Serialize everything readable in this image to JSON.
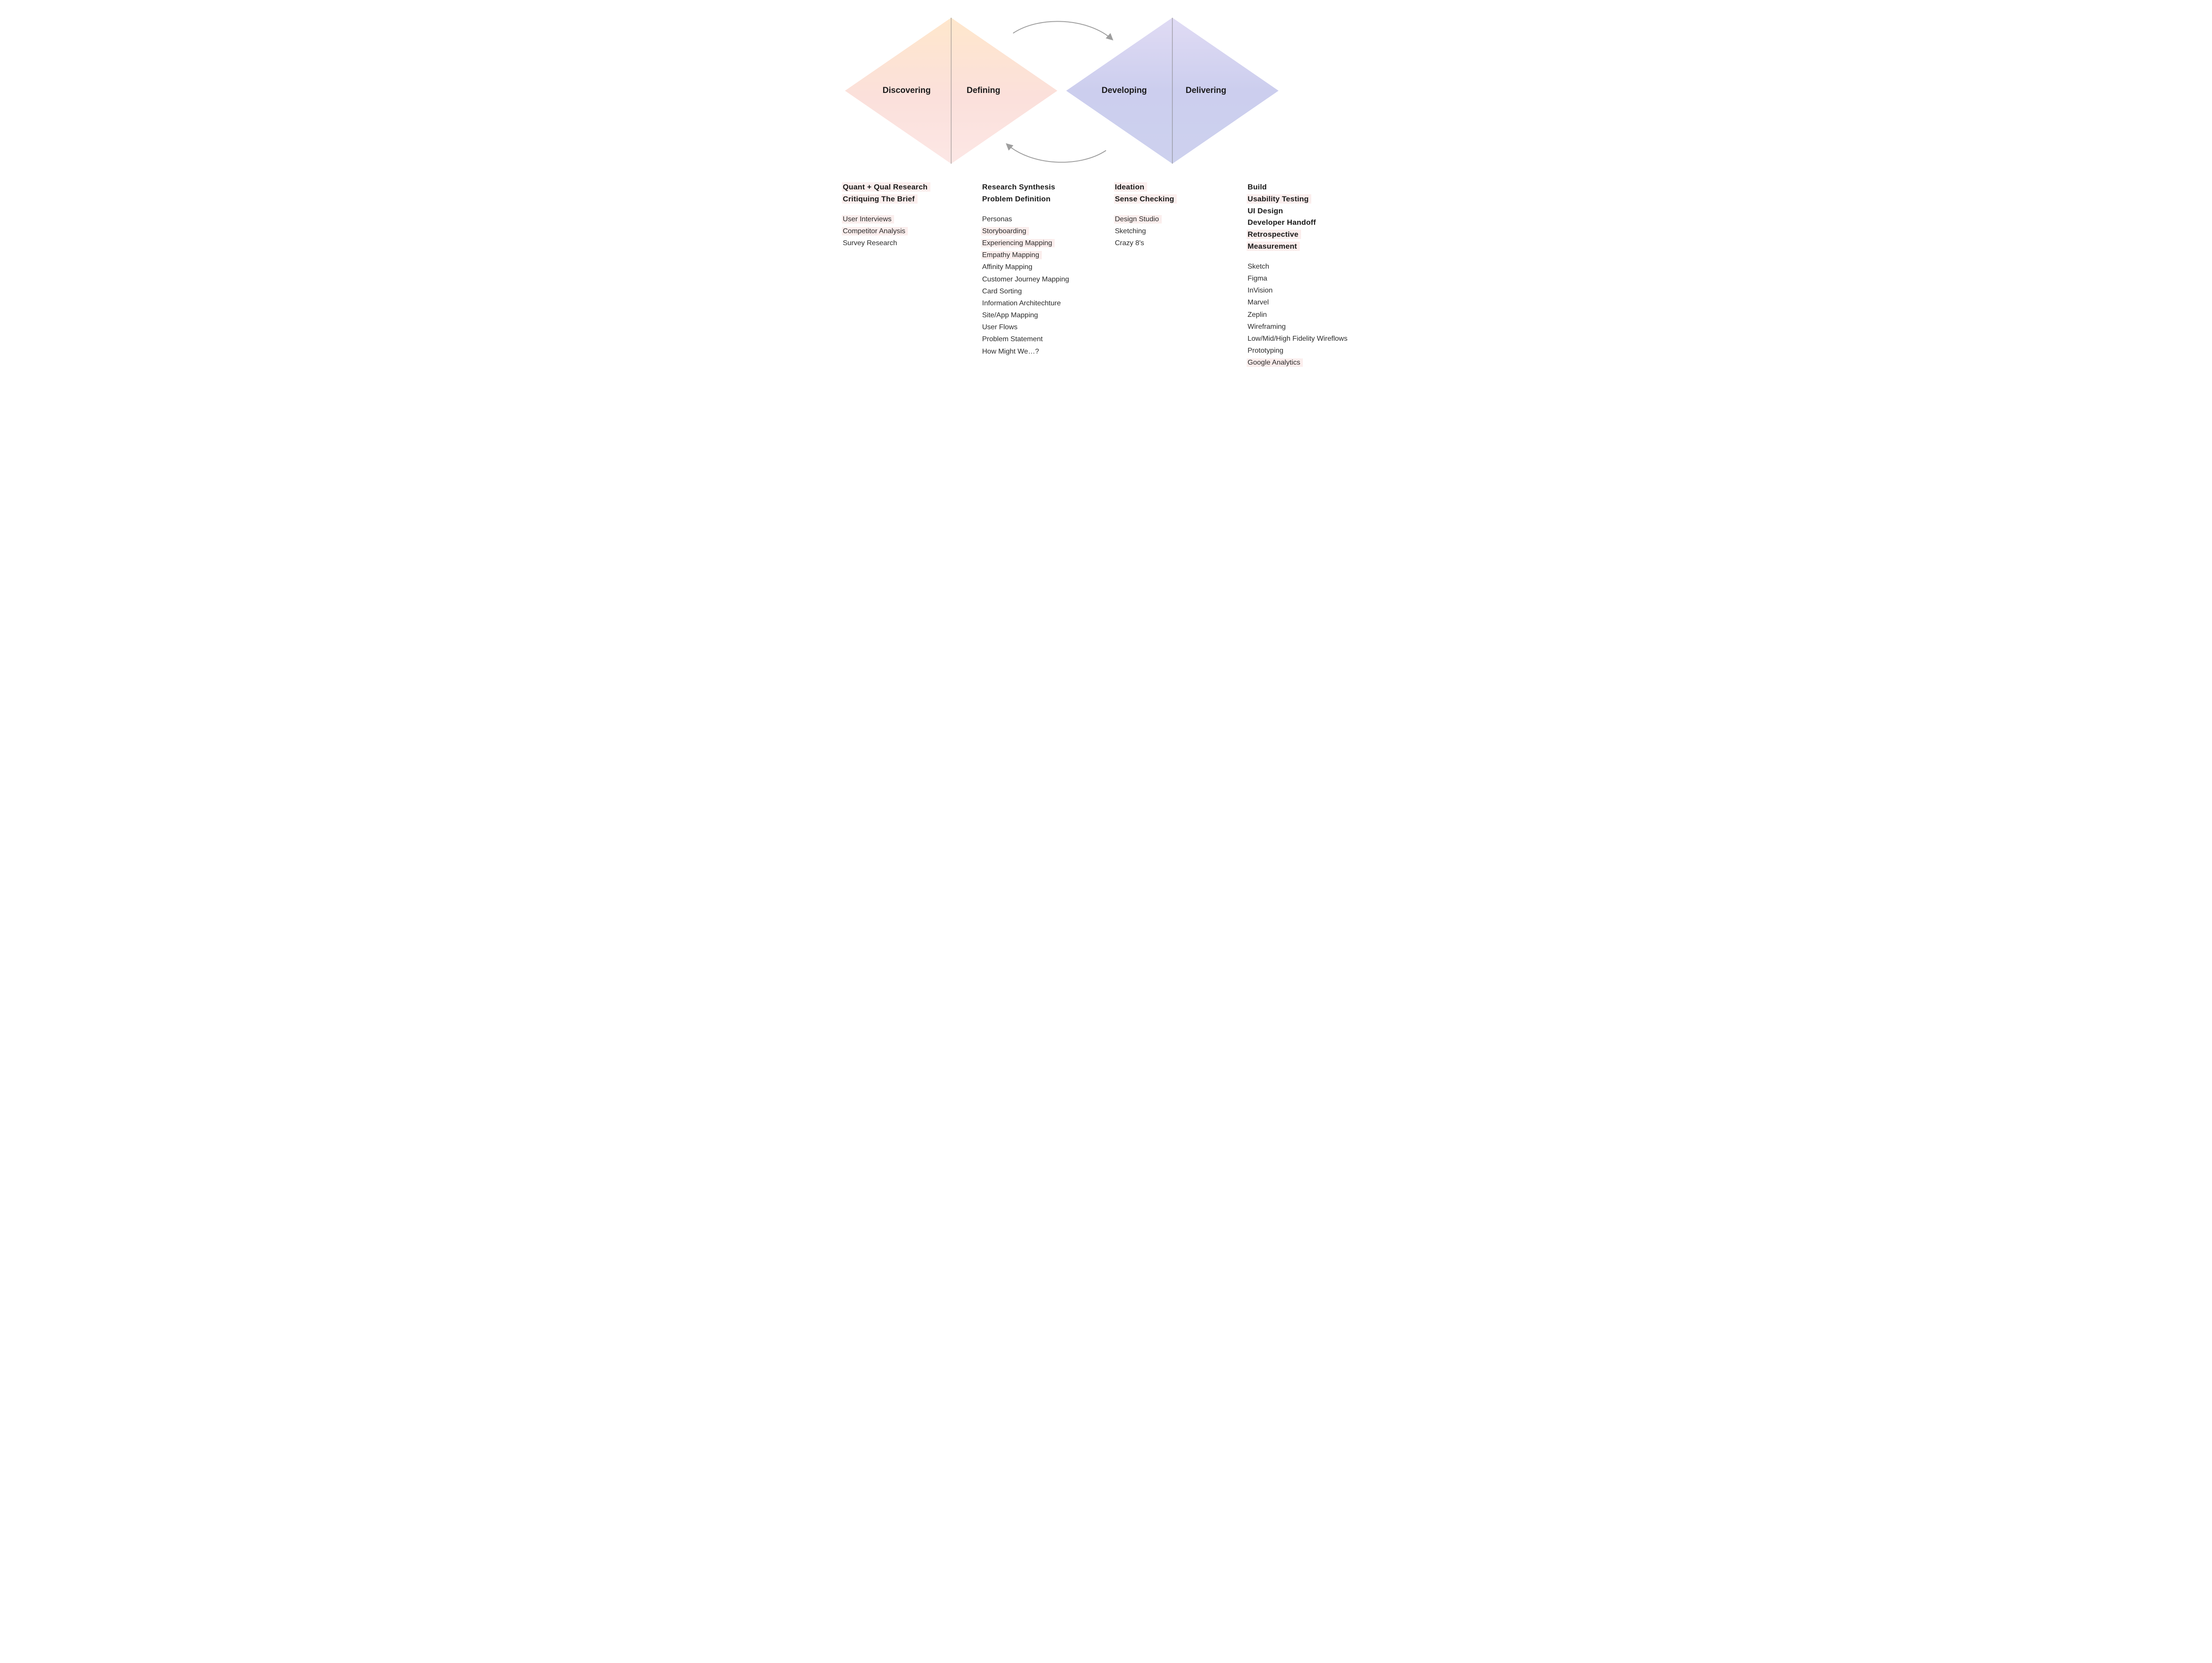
{
  "type": "infographic",
  "structure": "double-diamond",
  "background_color": "#ffffff",
  "highlight_color": "#fbeeed",
  "text_color": "#1a1a1a",
  "body_text_color": "#2b2b2b",
  "arrow_color": "#9e9e9e",
  "diamond1": {
    "gradient_from": "#ffe7cc",
    "gradient_mid": "#fbe0db",
    "gradient_to": "#fce7e5",
    "divider_color": "#808080"
  },
  "diamond2": {
    "gradient_from": "#e0dbf4",
    "gradient_mid": "#ccceee",
    "gradient_to": "#cdd1ee",
    "divider_color": "#808080"
  },
  "phases": {
    "p1": "Discovering",
    "p2": "Defining",
    "p3": "Developing",
    "p4": "Delivering"
  },
  "phase_label_fontsize": 19,
  "heading_fontsize": 17,
  "item_fontsize": 16,
  "columns": [
    {
      "id": "discovering",
      "headings": [
        {
          "text": "Quant + Qual Research",
          "highlight": true
        },
        {
          "text": "Critiquing The Brief",
          "highlight": true
        }
      ],
      "items": [
        {
          "text": "User Interviews",
          "highlight": true
        },
        {
          "text": "Competitor Analysis",
          "highlight": true
        },
        {
          "text": "Survey Research",
          "highlight": false
        }
      ]
    },
    {
      "id": "defining",
      "headings": [
        {
          "text": "Research Synthesis",
          "highlight": false
        },
        {
          "text": "Problem Definition",
          "highlight": false
        }
      ],
      "items": [
        {
          "text": "Personas",
          "highlight": false
        },
        {
          "text": "Storyboarding",
          "highlight": true
        },
        {
          "text": "Experiencing Mapping",
          "highlight": true
        },
        {
          "text": "Empathy Mapping",
          "highlight": true
        },
        {
          "text": "Affinity Mapping",
          "highlight": false
        },
        {
          "text": "Customer Journey Mapping",
          "highlight": false
        },
        {
          "text": "Card Sorting",
          "highlight": false
        },
        {
          "text": "Information Architechture",
          "highlight": false
        },
        {
          "text": "Site/App Mapping",
          "highlight": false
        },
        {
          "text": "User Flows",
          "highlight": false
        },
        {
          "text": "Problem Statement",
          "highlight": false
        },
        {
          "text": "How Might We…?",
          "highlight": false
        }
      ]
    },
    {
      "id": "developing",
      "headings": [
        {
          "text": "Ideation",
          "highlight": true
        },
        {
          "text": "Sense Checking",
          "highlight": true
        }
      ],
      "items": [
        {
          "text": "Design Studio",
          "highlight": true
        },
        {
          "text": "Sketching",
          "highlight": false
        },
        {
          "text": "Crazy 8's",
          "highlight": false
        }
      ]
    },
    {
      "id": "delivering",
      "headings": [
        {
          "text": "Build",
          "highlight": false
        },
        {
          "text": "Usability Testing",
          "highlight": true
        },
        {
          "text": "UI Design",
          "highlight": false
        },
        {
          "text": "Developer Handoff",
          "highlight": false
        },
        {
          "text": "Retrospective",
          "highlight": true
        },
        {
          "text": "Measurement",
          "highlight": true
        }
      ],
      "items": [
        {
          "text": "Sketch",
          "highlight": false
        },
        {
          "text": "Figma",
          "highlight": false
        },
        {
          "text": "InVision",
          "highlight": false
        },
        {
          "text": "Marvel",
          "highlight": false
        },
        {
          "text": "Zeplin",
          "highlight": false
        },
        {
          "text": "Wireframing",
          "highlight": false
        },
        {
          "text": "Low/Mid/High Fidelity Wireflows",
          "highlight": false
        },
        {
          "text": "Prototyping",
          "highlight": false
        },
        {
          "text": "Google Analytics",
          "highlight": true
        }
      ]
    }
  ]
}
